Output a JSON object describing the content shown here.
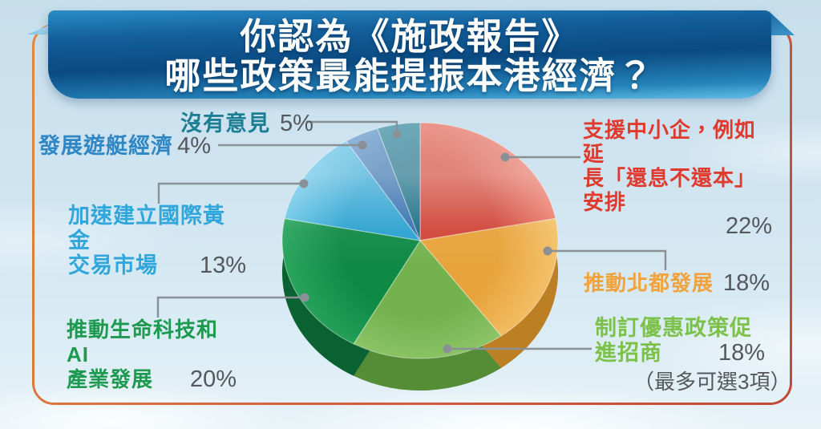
{
  "title": {
    "line1": "你認為《施政報告》",
    "line2": "哪些政策最能提振本港經濟？"
  },
  "note": {
    "text": "（最多可選3項）",
    "color": "#54575c"
  },
  "labels": {
    "none": {
      "text": "沒有意見",
      "pct": "5%",
      "color": "#1b7e92"
    },
    "yacht": {
      "text": "發展遊艇經濟",
      "pct": "4%",
      "color": "#2e86c4"
    },
    "gold": {
      "line1": "加速建立國際黃金",
      "line2": "交易市場",
      "pct": "13%",
      "color": "#2fa7dc"
    },
    "biotech": {
      "line1": "推動生命科技和AI",
      "line2": "產業發展",
      "pct": "20%",
      "color": "#1d9a50"
    },
    "sme": {
      "line1": "支援中小企，例如延",
      "line2": "長「還息不還本」安排",
      "pct": "22%",
      "color": "#e03a2e"
    },
    "northern": {
      "text": "推動北都發展",
      "pct": "18%",
      "color": "#f0a23d"
    },
    "incentives": {
      "line1": "制訂優惠政策促",
      "line2": "進招商",
      "pct": "18%",
      "color": "#7cc24a"
    }
  },
  "chart_data": {
    "type": "pie",
    "title": "你認為《施政報告》哪些政策最能提振本港經濟？",
    "note": "（最多可選3項）",
    "unit": "%",
    "start_angle_deg": 0,
    "direction": "clockwise",
    "style": "3d",
    "slices": [
      {
        "label": "支援中小企，例如延長「還息不還本」安排",
        "value": 22,
        "color": "#d04537",
        "light": "#ec8070",
        "side": "#9c2c20"
      },
      {
        "label": "推動北都發展",
        "value": 18,
        "color": "#e8a33b",
        "light": "#f4c36c",
        "side": "#bd7f24"
      },
      {
        "label": "制訂優惠政策促進招商",
        "value": 18,
        "color": "#74b24e",
        "light": "#95cc70",
        "side": "#558c36"
      },
      {
        "label": "推動生命科技和AI產業發展",
        "value": 20,
        "color": "#0f8a45",
        "light": "#2aa65e",
        "side": "#0a6131"
      },
      {
        "label": "加速建立國際黃金交易市場",
        "value": 13,
        "color": "#2ba2d1",
        "light": "#6cc8e8",
        "side": "#1b7aa4"
      },
      {
        "label": "發展遊艇經濟",
        "value": 4,
        "color": "#3470ae",
        "light": "#6d9fd2",
        "side": "#24527f"
      },
      {
        "label": "沒有意見",
        "value": 5,
        "color": "#1a6e85",
        "light": "#3a92a8",
        "side": "#124e5f"
      }
    ]
  }
}
